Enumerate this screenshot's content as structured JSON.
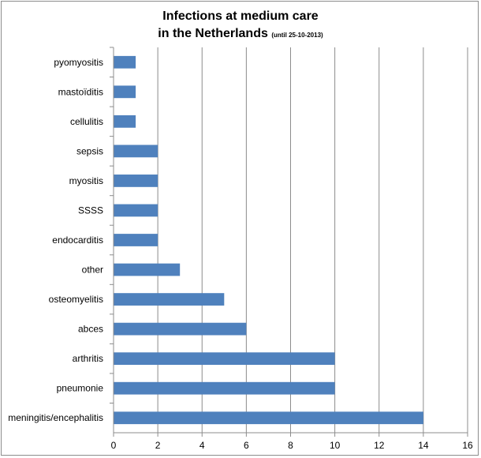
{
  "chart_data": {
    "type": "bar",
    "orientation": "horizontal",
    "title_line1": "Infections at medium care",
    "title_line2": "in the Netherlands",
    "subtitle": "(until 25-10-2013)",
    "categories": [
      "meningitis/encephalitis",
      "pneumonie",
      "arthritis",
      "abces",
      "osteomyelitis",
      "other",
      "endocarditis",
      "SSSS",
      "myositis",
      "sepsis",
      "cellulitis",
      "mastoïditis",
      "pyomyositis"
    ],
    "values": [
      14,
      10,
      10,
      6,
      5,
      3,
      2,
      2,
      2,
      2,
      1,
      1,
      1
    ],
    "xlim": [
      0,
      16
    ],
    "xticks": [
      "0",
      "2",
      "4",
      "6",
      "8",
      "10",
      "12",
      "14",
      "16"
    ],
    "grid": true,
    "legend": "none",
    "bar_color": "#4f81bd"
  }
}
